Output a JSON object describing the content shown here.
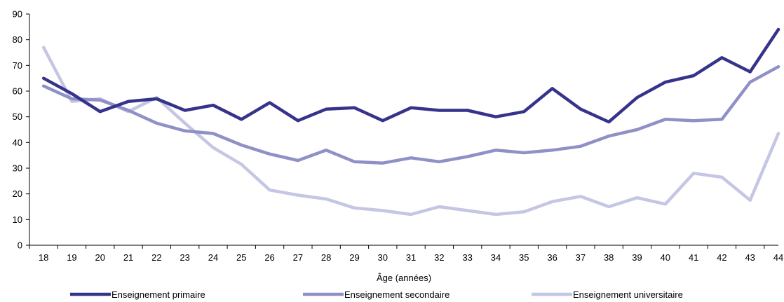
{
  "chart_data": {
    "type": "line",
    "title": "",
    "xlabel": "Âge (années)",
    "ylabel": "",
    "x": [
      18,
      19,
      20,
      21,
      22,
      23,
      24,
      25,
      26,
      27,
      28,
      29,
      30,
      31,
      32,
      33,
      34,
      35,
      36,
      37,
      38,
      39,
      40,
      41,
      42,
      43,
      44
    ],
    "ylim": [
      0,
      90
    ],
    "yticks": [
      0,
      10,
      20,
      30,
      40,
      50,
      60,
      70,
      80,
      90
    ],
    "grid": false,
    "legend_position": "bottom",
    "series": [
      {
        "name": "Enseignement primaire",
        "color": "#35348a",
        "values": [
          65,
          59,
          52,
          56,
          57,
          52.5,
          54.5,
          49,
          55.5,
          48.5,
          53,
          53.5,
          48.5,
          53.5,
          52.5,
          52.5,
          50,
          52,
          61,
          53,
          48,
          57.5,
          63.5,
          66,
          73,
          67.5,
          84
        ]
      },
      {
        "name": "Enseignement secondaire",
        "color": "#8f91c6",
        "values": [
          62,
          57,
          56.5,
          52.5,
          47.5,
          44.5,
          43.5,
          39,
          35.5,
          33,
          37,
          32.5,
          32,
          34,
          32.5,
          34.5,
          37,
          36,
          37,
          38.5,
          42.5,
          45,
          49,
          48.5,
          49,
          63.5,
          69.5
        ]
      },
      {
        "name": "Enseignement universitaire",
        "color": "#c5c6e3",
        "values": [
          77,
          56,
          57,
          52,
          57.5,
          47.5,
          38,
          31.5,
          21.5,
          19.5,
          18,
          14.5,
          13.5,
          12,
          15,
          13.5,
          12,
          13,
          17,
          19,
          15,
          18.5,
          16,
          28,
          26.5,
          17.5,
          43.5
        ]
      }
    ]
  }
}
